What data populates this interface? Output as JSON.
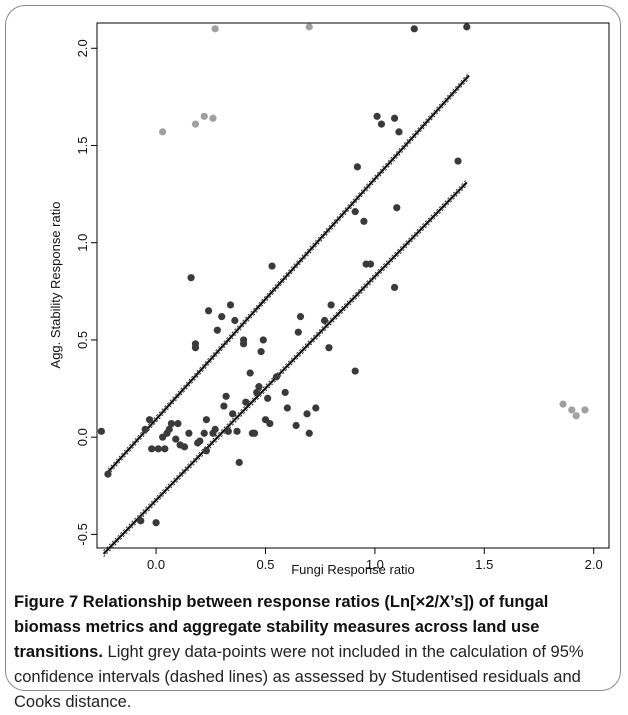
{
  "chart_data": {
    "type": "scatter",
    "xlabel": "Fungi Response ratio",
    "ylabel": "Agg. Stability Response ratio",
    "xlim": [
      -0.27,
      2.07
    ],
    "ylim": [
      -0.57,
      2.13
    ],
    "xticks": [
      "0.0",
      "0.5",
      "1.0",
      "1.5",
      "2.0"
    ],
    "xtick_values": [
      0.0,
      0.5,
      1.0,
      1.5,
      2.0
    ],
    "yticks": [
      "-0.5",
      "0.0",
      "0.5",
      "1.0",
      "1.5",
      "2.0"
    ],
    "ytick_values": [
      -0.5,
      0.0,
      0.5,
      1.0,
      1.5,
      2.0
    ],
    "grid": false,
    "colors": {
      "included": "#3a3a3a",
      "excluded": "#a0a0a0",
      "line": "#111111"
    },
    "series": [
      {
        "key": "included",
        "points": [
          [
            -0.25,
            0.03
          ],
          [
            -0.22,
            -0.19
          ],
          [
            -0.07,
            -0.43
          ],
          [
            -0.05,
            0.04
          ],
          [
            -0.03,
            0.09
          ],
          [
            -0.02,
            -0.06
          ],
          [
            0.0,
            -0.44
          ],
          [
            0.01,
            -0.06
          ],
          [
            0.03,
            0.0
          ],
          [
            0.04,
            -0.06
          ],
          [
            0.05,
            0.02
          ],
          [
            0.06,
            0.04
          ],
          [
            0.07,
            0.07
          ],
          [
            0.09,
            -0.01
          ],
          [
            0.1,
            0.07
          ],
          [
            0.11,
            -0.04
          ],
          [
            0.13,
            -0.05
          ],
          [
            0.15,
            0.02
          ],
          [
            0.16,
            0.82
          ],
          [
            0.18,
            0.46
          ],
          [
            0.18,
            0.48
          ],
          [
            0.19,
            -0.03
          ],
          [
            0.2,
            -0.02
          ],
          [
            0.22,
            0.02
          ],
          [
            0.23,
            0.09
          ],
          [
            0.23,
            -0.07
          ],
          [
            0.24,
            0.65
          ],
          [
            0.26,
            0.02
          ],
          [
            0.27,
            0.04
          ],
          [
            0.28,
            0.55
          ],
          [
            0.3,
            0.62
          ],
          [
            0.31,
            0.16
          ],
          [
            0.32,
            0.21
          ],
          [
            0.33,
            0.03
          ],
          [
            0.34,
            0.68
          ],
          [
            0.35,
            0.12
          ],
          [
            0.36,
            0.6
          ],
          [
            0.37,
            0.03
          ],
          [
            0.38,
            -0.13
          ],
          [
            0.4,
            0.48
          ],
          [
            0.4,
            0.5
          ],
          [
            0.41,
            0.18
          ],
          [
            0.43,
            0.33
          ],
          [
            0.44,
            0.02
          ],
          [
            0.45,
            0.02
          ],
          [
            0.46,
            0.23
          ],
          [
            0.47,
            0.26
          ],
          [
            0.48,
            0.44
          ],
          [
            0.49,
            0.5
          ],
          [
            0.5,
            0.09
          ],
          [
            0.51,
            0.2
          ],
          [
            0.52,
            0.07
          ],
          [
            0.53,
            0.88
          ],
          [
            0.55,
            0.31
          ],
          [
            0.59,
            0.23
          ],
          [
            0.6,
            0.15
          ],
          [
            0.64,
            0.06
          ],
          [
            0.65,
            0.54
          ],
          [
            0.66,
            0.62
          ],
          [
            0.69,
            0.12
          ],
          [
            0.7,
            0.02
          ],
          [
            0.73,
            0.15
          ],
          [
            0.77,
            0.6
          ],
          [
            0.79,
            0.46
          ],
          [
            0.8,
            0.68
          ],
          [
            0.91,
            0.34
          ],
          [
            0.91,
            1.16
          ],
          [
            0.92,
            1.39
          ],
          [
            0.95,
            1.11
          ],
          [
            0.96,
            0.89
          ],
          [
            0.98,
            0.89
          ],
          [
            1.01,
            1.65
          ],
          [
            1.03,
            1.61
          ],
          [
            1.09,
            0.77
          ],
          [
            1.09,
            1.64
          ],
          [
            1.1,
            1.18
          ],
          [
            1.11,
            1.57
          ],
          [
            1.18,
            2.1
          ],
          [
            1.38,
            1.42
          ],
          [
            1.42,
            2.11
          ]
        ]
      },
      {
        "key": "excluded",
        "points": [
          [
            0.03,
            1.57
          ],
          [
            0.18,
            1.61
          ],
          [
            0.22,
            1.65
          ],
          [
            0.26,
            1.64
          ],
          [
            0.27,
            2.1
          ],
          [
            0.7,
            2.11
          ],
          [
            1.86,
            0.17
          ],
          [
            1.9,
            0.14
          ],
          [
            1.92,
            0.11
          ],
          [
            1.96,
            0.14
          ]
        ]
      }
    ],
    "lines": [
      {
        "key": "fit-upper",
        "x": [
          -0.22,
          1.43
        ],
        "y": [
          -0.18,
          1.86
        ]
      },
      {
        "key": "fit-lower",
        "x": [
          -0.24,
          1.42
        ],
        "y": [
          -0.6,
          1.31
        ]
      }
    ]
  },
  "caption": {
    "figure_label": "Figure 7",
    "bold_text": " Relationship between response ratios (Ln[×2/X’s]) of fungal biomass metrics and aggregate stability measures across land use transitions.",
    "body_text": " Light grey data-points were not included in the calculation of 95% confidence intervals (dashed lines) as assessed by Studentised residuals and Cooks distance."
  }
}
